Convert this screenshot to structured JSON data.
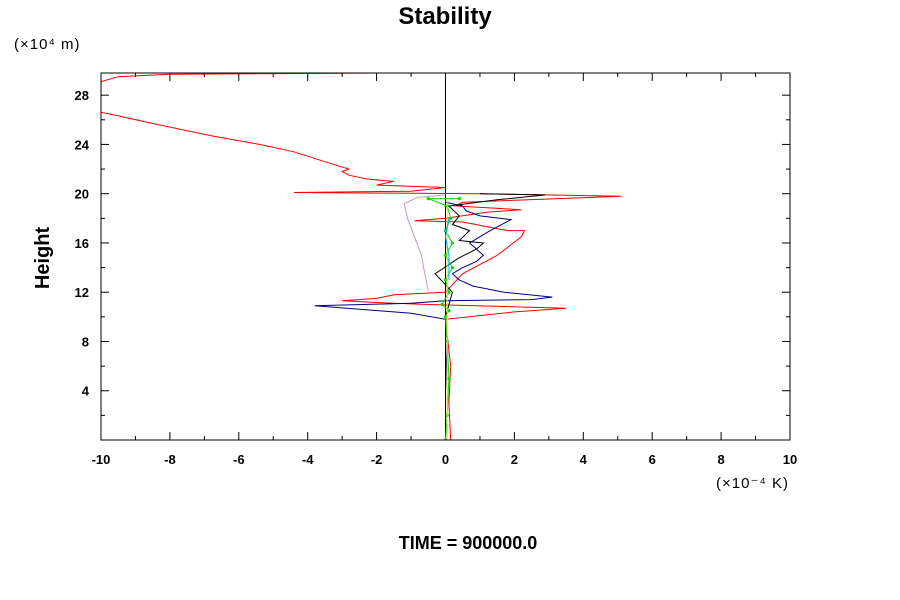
{
  "chart_data": {
    "type": "line",
    "title": "Stability",
    "xlabel": "",
    "ylabel": "Height",
    "x_unit": "(×10⁻⁴ K)",
    "y_unit": "(×10⁴ m)",
    "footer": "TIME = 900000.0",
    "xlim": [
      -10,
      10
    ],
    "ylim": [
      0,
      29.8
    ],
    "x_ticks": [
      -10,
      -8,
      -6,
      -4,
      -2,
      0,
      2,
      4,
      6,
      8,
      10
    ],
    "x_tick_labels": [
      "-10",
      "-8",
      "-6",
      "-4",
      "-2",
      "0",
      "2",
      "4",
      "6",
      "8",
      "10"
    ],
    "y_ticks": [
      4,
      8,
      12,
      16,
      20,
      24,
      28
    ],
    "y_tick_labels": [
      "4",
      "8",
      "12",
      "16",
      "20",
      "24",
      "28"
    ],
    "grid": false,
    "colors": {
      "red": "#ff0000",
      "navy": "#00007f",
      "black": "#000000",
      "violet": "#d58fd5",
      "green": "#00dd00",
      "yellow": "#e6e600",
      "cyan": "#00aaff"
    },
    "series": [
      {
        "color": "red",
        "points": [
          [
            0.15,
            0
          ],
          [
            0.1,
            3
          ],
          [
            0.15,
            6
          ],
          [
            0.05,
            8.5
          ],
          [
            0,
            9.8
          ],
          [
            2,
            10.4
          ],
          [
            3.5,
            10.7
          ],
          [
            -0.5,
            11
          ],
          [
            -1.5,
            11.1
          ],
          [
            -3,
            11.3
          ],
          [
            -2,
            11.5
          ],
          [
            -1.5,
            11.8
          ],
          [
            0,
            12
          ],
          [
            0.5,
            13.5
          ],
          [
            1.5,
            15
          ],
          [
            2.2,
            16.5
          ],
          [
            2.3,
            17
          ],
          [
            1.8,
            17
          ],
          [
            0.5,
            17.7
          ],
          [
            -0.9,
            17.8
          ],
          [
            0,
            18
          ],
          [
            1.2,
            18.5
          ],
          [
            2.2,
            18.7
          ],
          [
            0.3,
            19
          ],
          [
            0.5,
            19.3
          ],
          [
            5.1,
            19.8
          ],
          [
            1,
            20
          ],
          [
            -4.4,
            20.1
          ],
          [
            -1,
            20.2
          ],
          [
            0,
            20.5
          ],
          [
            -2,
            20.7
          ],
          [
            -1.5,
            21
          ],
          [
            -2.3,
            21.2
          ],
          [
            -2.8,
            21.5
          ],
          [
            -3,
            21.8
          ],
          [
            -2.8,
            22
          ],
          [
            -3.5,
            22.6
          ],
          [
            -4.4,
            23.4
          ],
          [
            -5.4,
            24
          ],
          [
            -6.8,
            24.7
          ],
          [
            -8.5,
            25.7
          ],
          [
            -9.8,
            26.5
          ],
          [
            -10,
            26.6
          ]
        ],
        "segments_after_clip": [
          [
            [
              -10,
              29.1
            ],
            [
              -9.5,
              29.5
            ],
            [
              -8,
              29.7
            ],
            [
              -2,
              29.8
            ]
          ]
        ]
      },
      {
        "color": "navy",
        "points": [
          [
            0,
            0
          ],
          [
            0,
            4
          ],
          [
            0.05,
            8
          ],
          [
            0,
            9.8
          ],
          [
            -1,
            10.3
          ],
          [
            -3.8,
            10.9
          ],
          [
            -1,
            11.1
          ],
          [
            0,
            11.3
          ],
          [
            2.5,
            11.4
          ],
          [
            3.1,
            11.6
          ],
          [
            1.7,
            12
          ],
          [
            0.8,
            12.5
          ],
          [
            0.4,
            13
          ],
          [
            0.2,
            13.5
          ],
          [
            0.5,
            14
          ],
          [
            0.9,
            14.5
          ],
          [
            1.1,
            15
          ],
          [
            0.7,
            16
          ],
          [
            1.3,
            17
          ],
          [
            1.9,
            17.9
          ],
          [
            1.0,
            18.2
          ],
          [
            0.6,
            18.6
          ],
          [
            0.5,
            19
          ],
          [
            0,
            19.3
          ]
        ]
      },
      {
        "color": "black",
        "points": [
          [
            0,
            0
          ],
          [
            0,
            6
          ],
          [
            0,
            10
          ],
          [
            0.1,
            11
          ],
          [
            0.2,
            12
          ],
          [
            -0.3,
            13.5
          ],
          [
            0.4,
            14.8
          ],
          [
            0.9,
            15.5
          ],
          [
            1.1,
            16
          ],
          [
            0.4,
            16.2
          ],
          [
            0.7,
            17
          ],
          [
            0.2,
            17.5
          ],
          [
            0.4,
            18.2
          ],
          [
            0.1,
            19
          ],
          [
            1.5,
            19.5
          ],
          [
            2.9,
            19.9
          ],
          [
            1,
            20
          ]
        ]
      },
      {
        "color": "violet",
        "points": [
          [
            -0.5,
            12.1
          ],
          [
            -0.6,
            13.5
          ],
          [
            -0.7,
            15
          ],
          [
            -0.9,
            16.5
          ],
          [
            -1.1,
            18
          ],
          [
            -1.2,
            19.2
          ],
          [
            -0.8,
            19.7
          ],
          [
            0,
            19.9
          ]
        ]
      },
      {
        "color": "green",
        "points": [
          [
            0,
            0
          ],
          [
            0.05,
            2
          ],
          [
            0.1,
            5
          ],
          [
            0.05,
            8
          ],
          [
            0,
            10
          ],
          [
            0.1,
            10.5
          ],
          [
            -0.1,
            11
          ],
          [
            0.1,
            12
          ],
          [
            0,
            13
          ],
          [
            0.2,
            14
          ],
          [
            0,
            15
          ],
          [
            0.2,
            16
          ],
          [
            0,
            17
          ],
          [
            0.15,
            18
          ],
          [
            0.05,
            19
          ],
          [
            -0.5,
            19.6
          ],
          [
            0.4,
            19.6
          ]
        ]
      },
      {
        "color": "yellow",
        "points": [
          [
            0.05,
            0
          ],
          [
            0.05,
            3
          ],
          [
            0.05,
            6
          ],
          [
            0.05,
            9
          ],
          [
            0.05,
            12
          ],
          [
            0.05,
            15
          ],
          [
            0.05,
            18
          ],
          [
            0.05,
            19.5
          ]
        ]
      },
      {
        "color": "cyan",
        "points": [
          [
            0.1,
            13
          ],
          [
            0.1,
            15
          ],
          [
            0,
            16.5
          ],
          [
            0.1,
            18
          ]
        ]
      }
    ]
  }
}
